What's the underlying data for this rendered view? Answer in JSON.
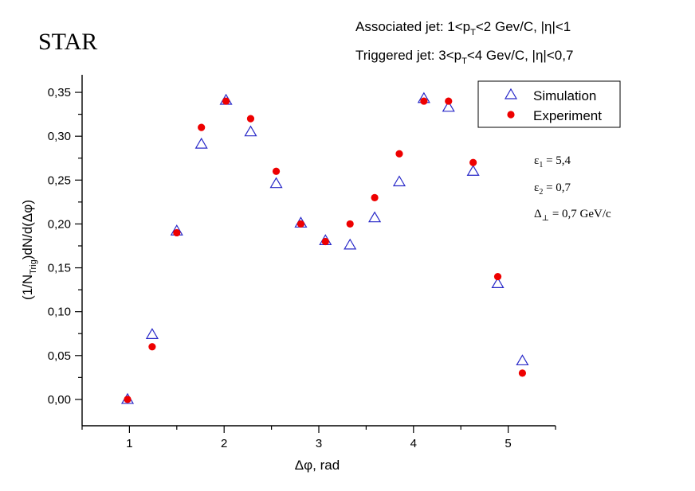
{
  "chart_data": {
    "type": "scatter",
    "title": "STAR",
    "subtitle": {
      "associated_prefix": "Associated jet: 1<p",
      "associated_sub": "T",
      "associated_suffix": "<2 Gev/C, |η|<1",
      "triggered_prefix": "Triggered jet: 3<p",
      "triggered_sub": "T",
      "triggered_suffix": "<4 Gev/C, |η|<0,7"
    },
    "xlabel": "Δφ, rad",
    "ylabel": {
      "part1": "(1/N",
      "sub": "Trig",
      "part2": ")dN/d(Δφ)"
    },
    "xlim": [
      0.5,
      5.5
    ],
    "ylim": [
      -0.03,
      0.37
    ],
    "x_ticks": [
      1,
      2,
      3,
      4,
      5
    ],
    "x_tick_labels": [
      "1",
      "2",
      "3",
      "4",
      "5"
    ],
    "y_ticks": [
      0.0,
      0.05,
      0.1,
      0.15,
      0.2,
      0.25,
      0.3,
      0.35
    ],
    "y_tick_labels": [
      "0,00",
      "0,05",
      "0,10",
      "0,15",
      "0,20",
      "0,25",
      "0,30",
      "0,35"
    ],
    "grid": false,
    "legend_position": "top-right",
    "series": [
      {
        "name": "Simulation",
        "marker": "triangle-open",
        "color": "#2828c8",
        "x": [
          0.98,
          1.24,
          1.5,
          1.76,
          2.02,
          2.28,
          2.55,
          2.81,
          3.07,
          3.33,
          3.59,
          3.85,
          4.11,
          4.37,
          4.63,
          4.89,
          5.15
        ],
        "y": [
          0.0,
          0.074,
          0.192,
          0.291,
          0.341,
          0.305,
          0.246,
          0.201,
          0.181,
          0.176,
          0.207,
          0.248,
          0.343,
          0.333,
          0.26,
          0.132,
          0.044
        ]
      },
      {
        "name": "Experiment",
        "marker": "circle-filled",
        "color": "#ee0000",
        "x": [
          0.98,
          1.24,
          1.5,
          1.76,
          2.02,
          2.28,
          2.55,
          2.81,
          3.07,
          3.33,
          3.59,
          3.85,
          4.11,
          4.37,
          4.63,
          4.89,
          5.15
        ],
        "y": [
          0.0,
          0.06,
          0.19,
          0.31,
          0.34,
          0.32,
          0.26,
          0.2,
          0.18,
          0.2,
          0.23,
          0.28,
          0.34,
          0.34,
          0.27,
          0.14,
          0.03
        ]
      }
    ],
    "annotations": [
      {
        "symbol": "ε",
        "sub": "1",
        "text": " = 5,4"
      },
      {
        "symbol": "ε",
        "sub": "2",
        "text": " = 0,7"
      },
      {
        "symbol": "Δ",
        "sub": "⊥",
        "text": " = 0,7 GeV/c"
      }
    ]
  }
}
